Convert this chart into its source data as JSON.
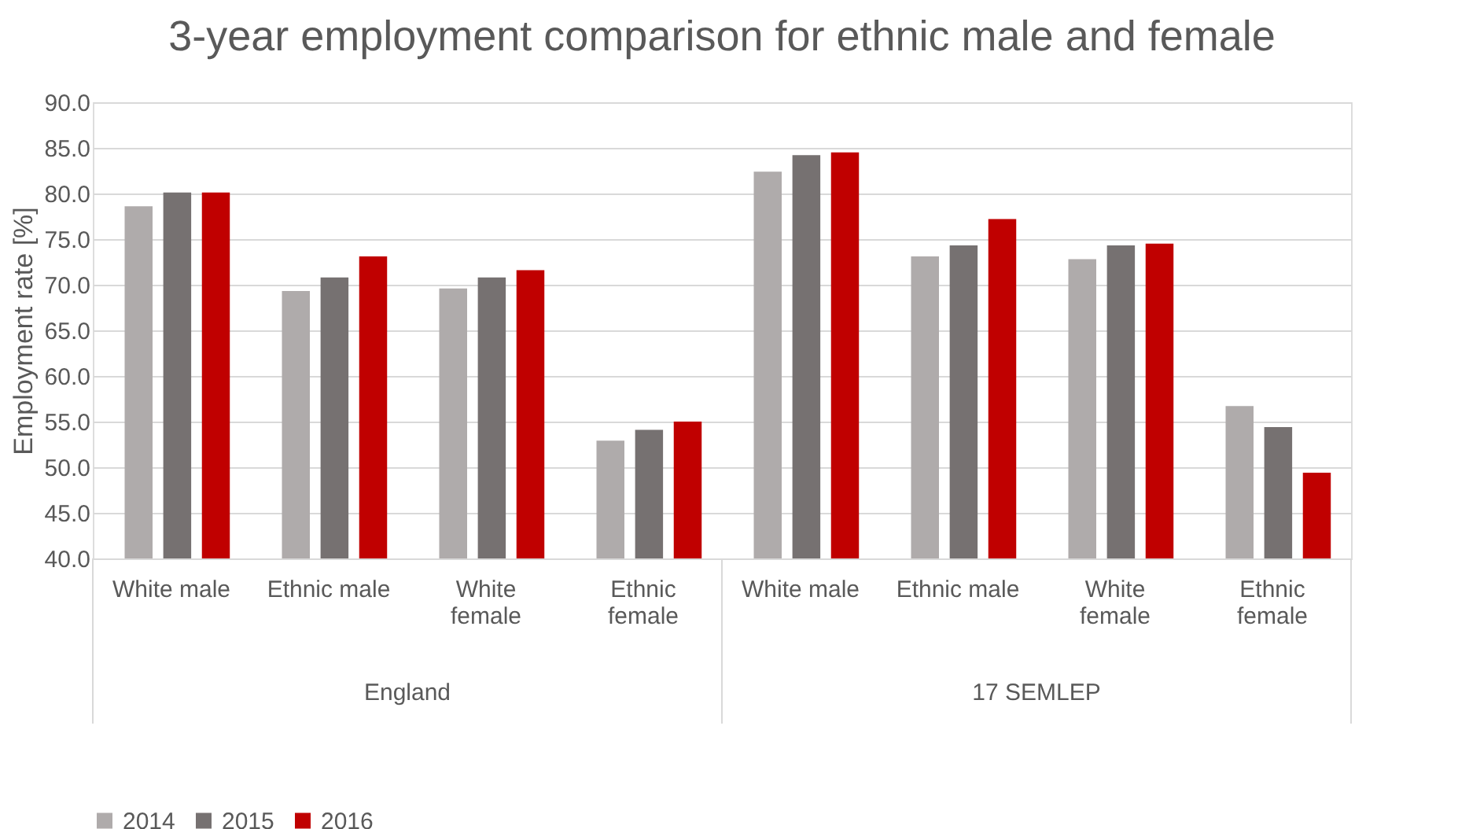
{
  "chart_data": {
    "type": "bar",
    "title": "3-year employment comparison for ethnic male and female",
    "ylabel": "Employment rate [%]",
    "categories": [
      "White male",
      "Ethnic male",
      "White female",
      "Ethnic female",
      "White male",
      "Ethnic male",
      "White female",
      "Ethnic female"
    ],
    "series": [
      {
        "name": "2014",
        "color": "#afabab",
        "values": [
          78.6,
          69.3,
          69.6,
          52.9,
          82.4,
          73.1,
          72.8,
          56.7
        ]
      },
      {
        "name": "2015",
        "color": "#767171",
        "values": [
          80.1,
          70.8,
          70.8,
          54.1,
          84.2,
          74.3,
          74.3,
          54.4
        ]
      },
      {
        "name": "2016",
        "color": "#c00000",
        "values": [
          80.1,
          73.1,
          71.6,
          55.0,
          84.5,
          77.2,
          74.5,
          49.4
        ]
      }
    ],
    "annotations": [
      "England",
      "17 SEMLEP"
    ],
    "ylim": [
      40,
      90
    ],
    "yticks": [
      {
        "value": 40,
        "label": "40.0"
      },
      {
        "value": 45,
        "label": "45.0"
      },
      {
        "value": 50,
        "label": "50.0"
      },
      {
        "value": 55,
        "label": "55.0"
      },
      {
        "value": 60,
        "label": "60.0"
      },
      {
        "value": 65,
        "label": "65.0"
      },
      {
        "value": 70,
        "label": "70.0"
      },
      {
        "value": 75,
        "label": "75.0"
      },
      {
        "value": 80,
        "label": "80.0"
      },
      {
        "value": 85,
        "label": "85.0"
      },
      {
        "value": 90,
        "label": "90.0"
      }
    ],
    "grid": "y",
    "legend": "bottom"
  }
}
